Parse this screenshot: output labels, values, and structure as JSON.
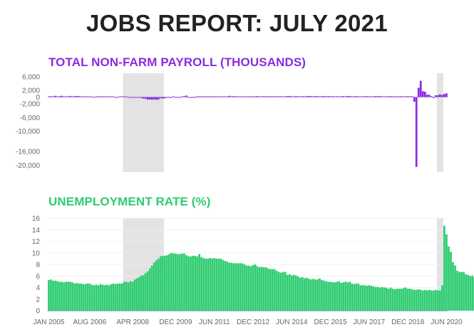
{
  "title": "JOBS REPORT: JULY 2021",
  "colors": {
    "payroll": "#8a2be2",
    "unemployment": "#2ecc71",
    "recession": "#e3e3e3",
    "title": "#222222"
  },
  "chart_data": [
    {
      "type": "bar",
      "title": "TOTAL NON-FARM PAYROLL (THOUSANDS)",
      "yticks": [
        "6,000",
        "2,000",
        "0",
        "-2,000",
        "-6,000",
        "-10,000",
        "-16,000",
        "-20,000"
      ],
      "ytick_values": [
        6000,
        2000,
        0,
        -2000,
        -6000,
        -10000,
        -16000,
        -20000
      ],
      "ylim": [
        -22000,
        7000
      ],
      "start": "2005-01",
      "values": [
        130,
        240,
        140,
        360,
        170,
        250,
        380,
        200,
        80,
        80,
        340,
        160,
        270,
        320,
        280,
        180,
        30,
        80,
        180,
        140,
        140,
        -40,
        200,
        170,
        230,
        80,
        100,
        110,
        70,
        80,
        10,
        -30,
        -80,
        100,
        110,
        100,
        10,
        -90,
        -60,
        -220,
        -190,
        -170,
        -210,
        -270,
        -450,
        -480,
        -730,
        -700,
        -780,
        -700,
        -800,
        -700,
        -330,
        -460,
        -340,
        -170,
        -210,
        -220,
        0,
        -110,
        -20,
        -60,
        190,
        270,
        440,
        -140,
        -100,
        -50,
        -10,
        230,
        120,
        80,
        40,
        200,
        250,
        70,
        110,
        220,
        70,
        110,
        110,
        140,
        180,
        170,
        370,
        210,
        280,
        80,
        110,
        50,
        190,
        150,
        170,
        130,
        180,
        230,
        190,
        290,
        140,
        140,
        250,
        90,
        210,
        250,
        220,
        240,
        210,
        220,
        230,
        190,
        160,
        300,
        330,
        170,
        200,
        300,
        230,
        150,
        250,
        200,
        270,
        320,
        280,
        160,
        320,
        230,
        150,
        260,
        280,
        70,
        290,
        190,
        240,
        120,
        240,
        200,
        190,
        290,
        200,
        300,
        310,
        160,
        180,
        270,
        140,
        200,
        170,
        260,
        250,
        160,
        220,
        210,
        280,
        250,
        290,
        180,
        170,
        130,
        110,
        270,
        180,
        220,
        110,
        190,
        230,
        110,
        180,
        270,
        200,
        240,
        -1370,
        -20500,
        2730,
        4780,
        1720,
        1580,
        720,
        650,
        260,
        -310,
        520,
        540,
        790,
        610,
        960,
        1090
      ],
      "recessions": [
        [
          "2007-12",
          "2009-06"
        ],
        [
          "2020-02",
          "2020-04"
        ]
      ]
    },
    {
      "type": "bar",
      "title": "UNEMPLOYMENT RATE (%)",
      "yticks": [
        "16",
        "14",
        "12",
        "10",
        "8",
        "6",
        "4",
        "2",
        "0"
      ],
      "ytick_values": [
        16,
        14,
        12,
        10,
        8,
        6,
        4,
        2,
        0
      ],
      "ylim": [
        0,
        16
      ],
      "start": "2005-01",
      "values": [
        5.3,
        5.4,
        5.2,
        5.2,
        5.1,
        5.0,
        5.0,
        4.9,
        5.0,
        5.0,
        5.0,
        4.9,
        4.7,
        4.8,
        4.7,
        4.7,
        4.6,
        4.6,
        4.7,
        4.7,
        4.5,
        4.4,
        4.5,
        4.4,
        4.6,
        4.5,
        4.4,
        4.5,
        4.4,
        4.6,
        4.7,
        4.6,
        4.7,
        4.7,
        4.7,
        5.0,
        5.0,
        4.9,
        5.1,
        5.0,
        5.4,
        5.6,
        5.8,
        6.1,
        6.1,
        6.5,
        6.8,
        7.3,
        7.8,
        8.3,
        8.7,
        9.0,
        9.4,
        9.5,
        9.5,
        9.6,
        9.8,
        10.0,
        9.9,
        9.9,
        9.8,
        9.8,
        9.9,
        9.9,
        9.6,
        9.4,
        9.4,
        9.5,
        9.5,
        9.4,
        9.8,
        9.3,
        9.1,
        9.0,
        9.0,
        9.1,
        9.0,
        9.1,
        9.0,
        9.0,
        9.0,
        8.8,
        8.6,
        8.5,
        8.3,
        8.3,
        8.2,
        8.2,
        8.2,
        8.2,
        8.2,
        8.0,
        7.8,
        7.8,
        7.7,
        7.9,
        8.0,
        7.7,
        7.5,
        7.6,
        7.5,
        7.5,
        7.3,
        7.2,
        7.2,
        7.2,
        6.9,
        6.7,
        6.6,
        6.7,
        6.7,
        6.2,
        6.3,
        6.1,
        6.2,
        6.1,
        5.9,
        5.7,
        5.8,
        5.6,
        5.7,
        5.5,
        5.4,
        5.5,
        5.4,
        5.4,
        5.6,
        5.3,
        5.2,
        5.1,
        5.0,
        5.0,
        4.9,
        4.9,
        5.0,
        5.1,
        4.8,
        4.9,
        5.0,
        4.9,
        5.0,
        4.7,
        4.6,
        4.7,
        4.7,
        4.4,
        4.4,
        4.4,
        4.3,
        4.4,
        4.3,
        4.2,
        4.1,
        4.1,
        4.0,
        4.1,
        4.0,
        4.0,
        3.8,
        4.0,
        3.8,
        3.7,
        3.8,
        3.8,
        3.8,
        3.9,
        4.0,
        3.8,
        3.8,
        3.7,
        3.6,
        3.6,
        3.7,
        3.6,
        3.5,
        3.6,
        3.5,
        3.6,
        3.5,
        3.5,
        3.6,
        3.5,
        3.5,
        4.4,
        14.7,
        13.2,
        11.1,
        10.2,
        8.4,
        7.8,
        6.9,
        6.7,
        6.7,
        6.7,
        6.3,
        6.2,
        6.0,
        6.1,
        5.8,
        5.9,
        5.4
      ],
      "recessions": [
        [
          "2007-12",
          "2009-06"
        ],
        [
          "2020-02",
          "2020-04"
        ]
      ]
    }
  ],
  "xticks": [
    "JAN 2005",
    "AUG 2006",
    "APR 2008",
    "DEC 2009",
    "JUN 2011",
    "DEC 2012",
    "JUN 2014",
    "DEC 2015",
    "JUN 2017",
    "DEC 2018",
    "JUN 2020"
  ],
  "xtick_months": [
    "2005-01",
    "2006-08",
    "2008-04",
    "2009-12",
    "2011-06",
    "2012-12",
    "2014-06",
    "2015-12",
    "2017-06",
    "2018-12",
    "2020-06"
  ]
}
